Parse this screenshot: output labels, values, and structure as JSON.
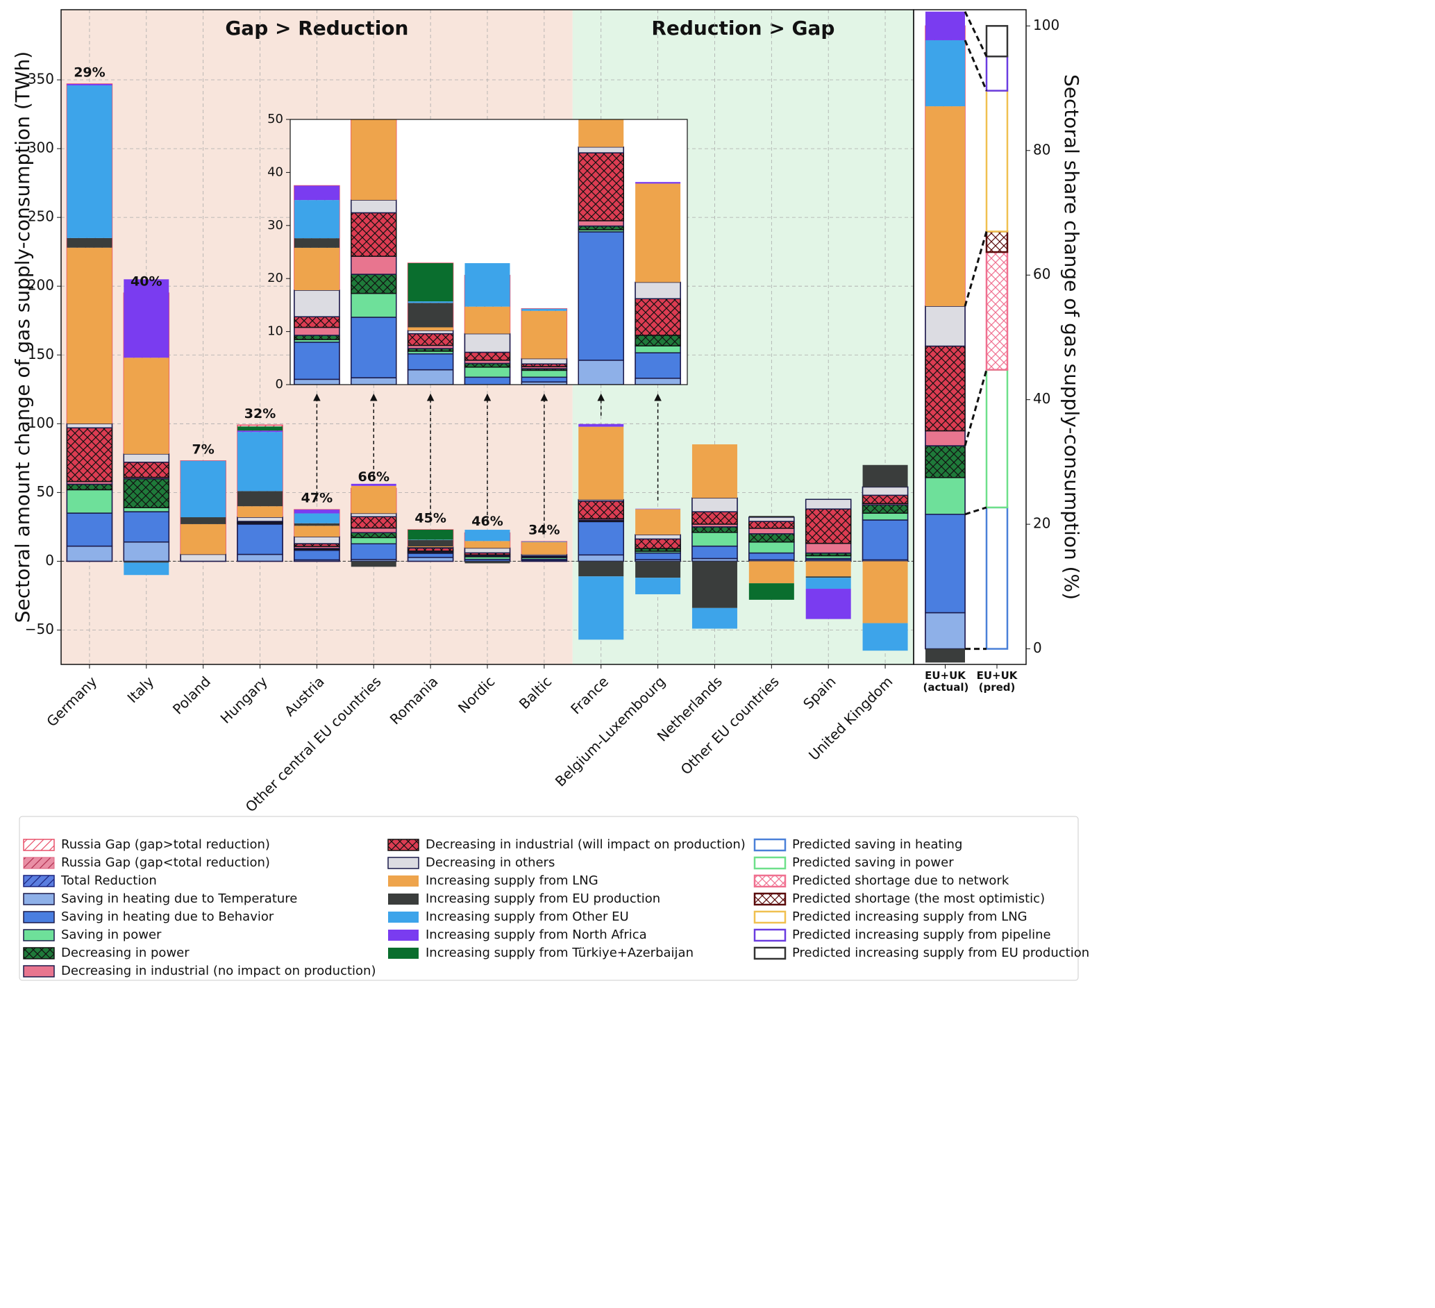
{
  "chart_data": {
    "type": "bar",
    "ylabel": "Sectoral amount change of gas supply-consumption (TWh)",
    "y2label": "Sectoral share change of gas supply-consumption (%)",
    "annotations": [
      "Gap  > Reduction",
      "Reduction > Gap"
    ],
    "categories": [
      "Germany",
      "Italy",
      "Poland",
      "Hungary",
      "Austria",
      "Other central EU countries",
      "Romania",
      "Nordic",
      "Baltic",
      "France",
      "Belgium-Luxembourg",
      "Netherlands",
      "Other EU countries",
      "Spain",
      "United Kingdom"
    ],
    "percent_labels": [
      "29%",
      "40%",
      "7%",
      "32%",
      "47%",
      "66%",
      "45%",
      "46%",
      "34%",
      null,
      null,
      null,
      null,
      null,
      null
    ],
    "ylim": [
      -75,
      401
    ],
    "yticks": [
      {
        "value": -50,
        "label": "−50"
      },
      0,
      50,
      100,
      150,
      200,
      250,
      300,
      350
    ],
    "inset_ylim": [
      0,
      50
    ],
    "inset_yticks": [
      0,
      10,
      20,
      30,
      40,
      50
    ],
    "share_categories": [
      "EU+UK (actual)",
      "EU+UK (pred)"
    ],
    "y2lim": [
      -2.5,
      102.6
    ],
    "y2ticks": [
      0,
      20,
      40,
      60,
      80,
      100
    ],
    "grid": true,
    "series": [
      {
        "name": "Russia Gap (gap>total reduction)",
        "color": "#e8506a",
        "values": [
          347,
          195,
          73,
          99,
          37.5,
          53,
          22.9,
          20.6,
          14.3,
          null,
          null,
          null,
          null,
          null,
          null
        ],
        "share": 100
      },
      {
        "name": "Russia Gap (gap<total reduction)",
        "color": "#e0607f",
        "values": [
          null,
          null,
          null,
          null,
          null,
          null,
          null,
          null,
          null,
          42.5,
          13.5,
          36,
          5,
          4,
          5
        ],
        "share": null
      },
      {
        "name": "Total Reduction",
        "color": "#5b7ee0",
        "values": [
          100,
          78,
          5,
          32,
          17.8,
          34.8,
          10.2,
          9.6,
          4.9,
          44.8,
          19.3,
          46,
          32,
          45,
          54
        ],
        "share": 55
      },
      {
        "name": "Saving in heating due to Temperature",
        "color": "#8eb0e8",
        "values": [
          11,
          14,
          0,
          5,
          1,
          1.3,
          2.8,
          0,
          0.5,
          4.6,
          1.2,
          2,
          1,
          1,
          1
        ],
        "share": 5.8
      },
      {
        "name": "Saving in heating due to Behavior",
        "color": "#4a7ee0",
        "values": [
          24,
          22,
          0,
          22,
          7,
          11.4,
          3,
          1.4,
          0.9,
          24.2,
          4.8,
          9,
          5,
          1,
          29
        ],
        "share": 15.8
      },
      {
        "name": "Saving in power",
        "color": "#6ee09a",
        "values": [
          17,
          3,
          0,
          0.5,
          0.5,
          4.5,
          0.5,
          1.9,
          1.3,
          0.4,
          1.3,
          10,
          8,
          2,
          5
        ],
        "share": 5.9
      },
      {
        "name": "Decreasing in power",
        "color": "#1f7a3a",
        "values": [
          4,
          21,
          0,
          0.5,
          0.8,
          3.6,
          0.5,
          0.7,
          0.3,
          0.7,
          2,
          4,
          6,
          2,
          6
        ],
        "share": 5.1
      },
      {
        "name": "Decreasing in industrial (no impact on production)",
        "color": "#e8758f",
        "values": [
          2,
          1,
          0,
          0.5,
          1.5,
          3.4,
          0.6,
          0.6,
          0.4,
          1,
          0,
          2,
          4,
          7,
          1
        ],
        "share": 2.4
      },
      {
        "name": "Decreasing in industrial (will impact on production)",
        "color": "#dc3c52",
        "values": [
          39,
          11,
          0,
          0.5,
          2,
          8.2,
          2.2,
          1.5,
          0.5,
          12.8,
          6.9,
          9,
          5,
          25,
          6
        ],
        "share": 13.6
      },
      {
        "name": "Decreasing in others",
        "color": "#dcdce2",
        "values": [
          3,
          6,
          5,
          3,
          5,
          2.4,
          0.6,
          3.5,
          1,
          1.1,
          3.1,
          10,
          3,
          7,
          6
        ],
        "share": 6.4
      },
      {
        "name": "Increasing supply from LNG",
        "color": "#eea44c",
        "values": [
          128,
          70,
          22,
          8,
          8,
          20,
          0.6,
          5.1,
          9,
          53,
          18.6,
          39,
          -16,
          -11,
          -45
        ],
        "share": 32.1
      },
      {
        "name": "Increasing supply from EU production",
        "color": "#3a3d3c",
        "values": [
          7,
          -1,
          5,
          11,
          1.8,
          -4,
          4.6,
          -1.5,
          0,
          -11,
          -12,
          -34,
          1,
          -1,
          16
        ],
        "share": -2.2
      },
      {
        "name": "Increasing supply from Other EU",
        "color": "#3da4ea",
        "values": [
          111,
          -9,
          41,
          43,
          7.2,
          0,
          0.3,
          8.2,
          0.4,
          -46,
          -12,
          -15,
          0,
          -8,
          -20
        ],
        "share": 10.6
      },
      {
        "name": "Increasing supply from North Africa",
        "color": "#7a3cf0",
        "values": [
          1,
          57,
          0,
          1,
          2.7,
          1.5,
          0,
          0,
          0,
          2,
          0.3,
          0,
          0,
          -22,
          0
        ],
        "share": 4.6
      },
      {
        "name": "Increasing supply from Türkiye+Azerbaijan",
        "color": "#0a6e2e",
        "values": [
          0,
          0,
          0,
          3,
          0,
          0,
          7.2,
          0,
          0,
          0,
          0,
          0,
          -12,
          0,
          0
        ],
        "share": 0
      }
    ],
    "pred_series": [
      {
        "name": "Predicted saving in heating",
        "color": "#4a80d8",
        "value": 22.7
      },
      {
        "name": "Predicted saving in power",
        "color": "#6ee08a",
        "value": 22.1
      },
      {
        "name": "Predicted shortage due to network",
        "color": "#f07090",
        "value": 18.9
      },
      {
        "name": "Predicted shortage (the most optimistic)",
        "color": "#5a0a0a",
        "value": 3.3
      },
      {
        "name": "Predicted increasing supply from LNG",
        "color": "#f0c050",
        "value": 22.6
      },
      {
        "name": "Predicted increasing supply from pipeline",
        "color": "#6a3ce0",
        "value": 5.5
      },
      {
        "name": "Predicted increasing supply from EU production",
        "color": "#333333",
        "value": 4.9
      }
    ]
  }
}
